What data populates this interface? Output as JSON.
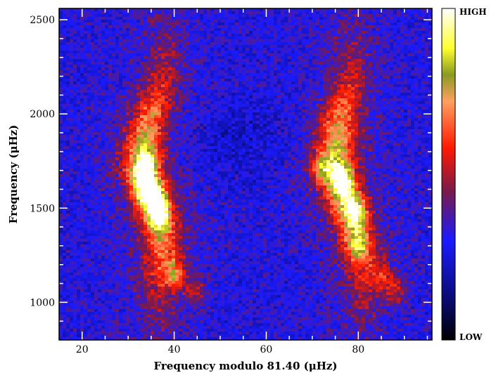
{
  "chart_data": {
    "type": "heatmap",
    "title": "",
    "xlabel": "Frequency modulo 81.40 (μHz)",
    "ylabel": "Frequency (μHz)",
    "xlim": [
      15,
      96
    ],
    "ylim": [
      800,
      2560
    ],
    "x_ticks": [
      20,
      40,
      60,
      80
    ],
    "y_ticks": [
      1000,
      1500,
      2000,
      2500
    ],
    "colorbar": {
      "high_label": "HIGH",
      "low_label": "LOW",
      "colors": [
        "#000000",
        "#1010ff",
        "#7a1a4a",
        "#ff1a00",
        "#ffa060",
        "#ffff30",
        "#ffffff"
      ]
    },
    "ridges": [
      {
        "points": [
          [
            36.5,
            1100
          ],
          [
            37.5,
            1250
          ],
          [
            37.0,
            1400
          ],
          [
            35.0,
            1550
          ],
          [
            33.0,
            1700
          ],
          [
            33.5,
            1850
          ],
          [
            35.5,
            2050
          ],
          [
            38.0,
            2250
          ]
        ]
      },
      {
        "points": [
          [
            81.0,
            1100
          ],
          [
            80.5,
            1250
          ],
          [
            79.0,
            1400
          ],
          [
            77.0,
            1550
          ],
          [
            75.5,
            1680
          ],
          [
            75.0,
            1800
          ],
          [
            76.0,
            2000
          ],
          [
            78.5,
            2200
          ]
        ]
      }
    ],
    "peaks": [
      {
        "x": 34.0,
        "y": 1720,
        "level": 0.9
      },
      {
        "x": 36.5,
        "y": 1530,
        "level": 0.9
      },
      {
        "x": 36.5,
        "y": 1450,
        "level": 0.7
      },
      {
        "x": 33.5,
        "y": 1600,
        "level": 0.75
      },
      {
        "x": 40.0,
        "y": 1150,
        "level": 0.75
      },
      {
        "x": 44.5,
        "y": 1060,
        "level": 0.55
      },
      {
        "x": 76.5,
        "y": 1650,
        "level": 0.75
      },
      {
        "x": 79.5,
        "y": 1480,
        "level": 0.8
      },
      {
        "x": 72.0,
        "y": 1700,
        "level": 0.65
      },
      {
        "x": 80.0,
        "y": 1300,
        "level": 0.6
      },
      {
        "x": 85.0,
        "y": 1140,
        "level": 0.55
      },
      {
        "x": 88.0,
        "y": 1060,
        "level": 0.55
      }
    ]
  }
}
